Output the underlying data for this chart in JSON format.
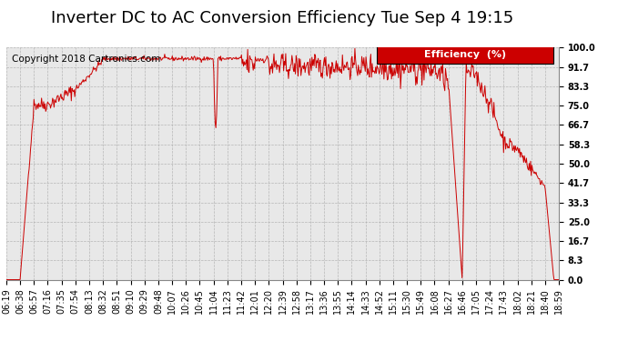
{
  "title": "Inverter DC to AC Conversion Efficiency Tue Sep 4 19:15",
  "copyright": "Copyright 2018 Cartronics.com",
  "background_color": "#ffffff",
  "plot_bg_color": "#e8e8e8",
  "grid_color": "#aaaaaa",
  "line_color": "#cc0000",
  "legend_bg": "#cc0000",
  "legend_text": "Efficiency  (%)",
  "yticks": [
    0.0,
    8.3,
    16.7,
    25.0,
    33.3,
    41.7,
    50.0,
    58.3,
    66.7,
    75.0,
    83.3,
    91.7,
    100.0
  ],
  "xtick_labels": [
    "06:19",
    "06:38",
    "06:57",
    "07:16",
    "07:35",
    "07:54",
    "08:13",
    "08:32",
    "08:51",
    "09:10",
    "09:29",
    "09:48",
    "10:07",
    "10:26",
    "10:45",
    "11:04",
    "11:23",
    "11:42",
    "12:01",
    "12:20",
    "12:39",
    "12:58",
    "13:17",
    "13:36",
    "13:55",
    "14:14",
    "14:33",
    "14:52",
    "15:11",
    "15:30",
    "15:49",
    "16:08",
    "16:27",
    "16:46",
    "17:05",
    "17:24",
    "17:43",
    "18:02",
    "18:21",
    "18:40",
    "18:59"
  ],
  "ylim": [
    0.0,
    100.0
  ],
  "title_fontsize": 13,
  "axis_fontsize": 7,
  "copyright_fontsize": 7.5,
  "legend_fontsize": 8
}
